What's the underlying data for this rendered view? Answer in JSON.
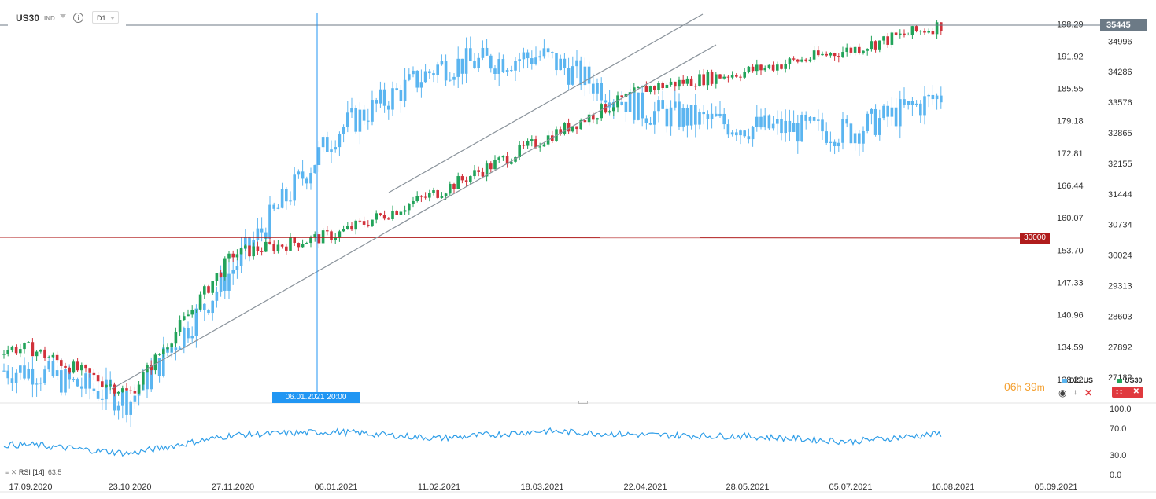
{
  "header": {
    "symbol": "US30",
    "symbol_type": "IND",
    "info_icon": "info-icon",
    "timeframe": "D1"
  },
  "chart_data": [
    {
      "type": "candlestick",
      "name": "US30",
      "axis": "right-outer",
      "ylim": [
        26600,
        35660
      ],
      "y_ticks": [
        27182,
        27892,
        28603,
        29313,
        30024,
        30734,
        31444,
        32155,
        32865,
        33576,
        34286,
        34996
      ],
      "last_price": "35445",
      "horizontal_level": "30000",
      "colors": {
        "up": "#22a35a",
        "down": "#d1323b"
      },
      "anchors": [
        [
          "17.09.2020",
          27850
        ],
        [
          "23.10.2020",
          26800
        ],
        [
          "27.11.2020",
          30050
        ],
        [
          "06.01.2021",
          30500
        ],
        [
          "11.02.2021",
          31500
        ],
        [
          "18.03.2021",
          32700
        ],
        [
          "22.04.2021",
          33900
        ],
        [
          "28.05.2021",
          34300
        ],
        [
          "05.07.2021",
          34800
        ],
        [
          "10.08.2021",
          35445
        ]
      ],
      "trend_channel": "ascending",
      "crosshair_date": "06.01.2021 20:00"
    },
    {
      "type": "candlestick",
      "name": "DIS.US",
      "axis": "right-inner",
      "ylim": [
        123.7,
        200.5
      ],
      "y_ticks": [
        128.22,
        134.59,
        140.96,
        147.33,
        153.7,
        160.07,
        166.44,
        172.81,
        179.18,
        185.55,
        191.92,
        198.29
      ],
      "color": "#5bb5f0",
      "anchors": [
        [
          "17.09.2020",
          130
        ],
        [
          "23.10.2020",
          124
        ],
        [
          "27.11.2020",
          150
        ],
        [
          "06.01.2021",
          177
        ],
        [
          "11.02.2021",
          190
        ],
        [
          "18.03.2021",
          192
        ],
        [
          "22.04.2021",
          181
        ],
        [
          "28.05.2021",
          178
        ],
        [
          "05.07.2021",
          177
        ],
        [
          "10.08.2021",
          185
        ]
      ]
    },
    {
      "type": "line",
      "name": "RSI",
      "period": "14",
      "last_value": "63.5",
      "color": "#2f9ee8",
      "ylim": [
        0,
        100
      ],
      "y_ticks": [
        "100.0",
        "70.0",
        "30.0",
        "0.0"
      ],
      "anchors": [
        [
          "17.09.2020",
          45
        ],
        [
          "23.10.2020",
          32
        ],
        [
          "27.11.2020",
          60
        ],
        [
          "06.01.2021",
          65
        ],
        [
          "11.02.2021",
          55
        ],
        [
          "18.03.2021",
          66
        ],
        [
          "22.04.2021",
          60
        ],
        [
          "28.05.2021",
          58
        ],
        [
          "05.07.2021",
          50
        ],
        [
          "10.08.2021",
          63.5
        ]
      ]
    }
  ],
  "x_axis": {
    "labels": [
      "17.09.2020",
      "23.10.2020",
      "27.11.2020",
      "06.01.2021",
      "11.02.2021",
      "18.03.2021",
      "22.04.2021",
      "28.05.2021",
      "05.07.2021",
      "10.08.2021",
      "05.09.2021"
    ]
  },
  "countdown": {
    "hours": "06",
    "h_unit": "h",
    "minutes": "39",
    "m_unit": "m"
  },
  "legend": {
    "dis_label": "DIS.US",
    "dis_color": "#5bb5f0",
    "us30_label": "US30",
    "us30_color": "#22a35a"
  },
  "rsi_panel": {
    "label": "RSI",
    "period": "[14]",
    "value": "63.5"
  }
}
